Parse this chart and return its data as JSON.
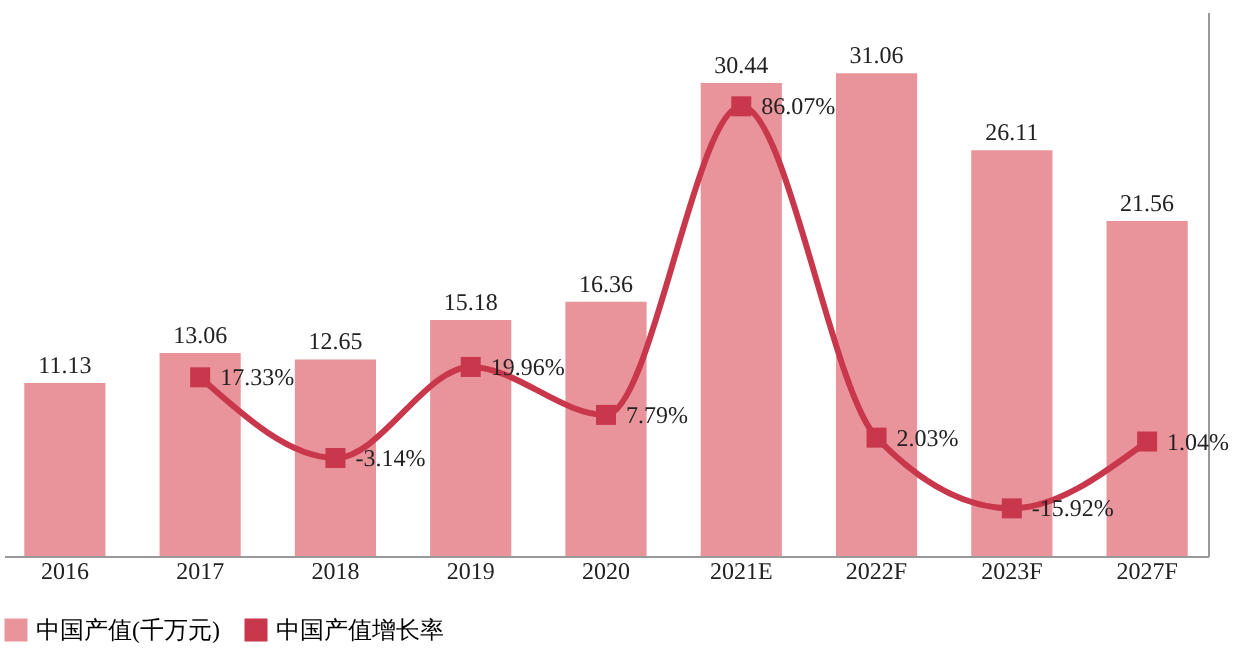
{
  "chart_data": {
    "type": "bar",
    "categories": [
      "2016",
      "2017",
      "2018",
      "2019",
      "2020",
      "2021E",
      "2022F",
      "2023F",
      "2027F"
    ],
    "series": [
      {
        "name": "中国产值(千万元)",
        "color": "#e8949a",
        "values": [
          11.13,
          13.06,
          12.65,
          15.18,
          16.36,
          30.44,
          31.06,
          26.11,
          21.56
        ]
      },
      {
        "name": "中国产值增长率",
        "type": "line",
        "axis": "y2",
        "color": "#c8374b",
        "marker": "square",
        "values": [
          null,
          17.33,
          -3.14,
          19.96,
          7.79,
          86.07,
          2.03,
          -15.92,
          1.04
        ],
        "value_labels": [
          null,
          "17.33%",
          "-3.14%",
          "19.96%",
          "7.79%",
          "86.07%",
          "2.03%",
          "-15.92%",
          "1.04%"
        ]
      }
    ],
    "ylim": [
      0,
      35
    ],
    "y2lim": [
      -28,
      110
    ],
    "data_labels": true,
    "tick_labels": "x",
    "legend": "bottom"
  }
}
